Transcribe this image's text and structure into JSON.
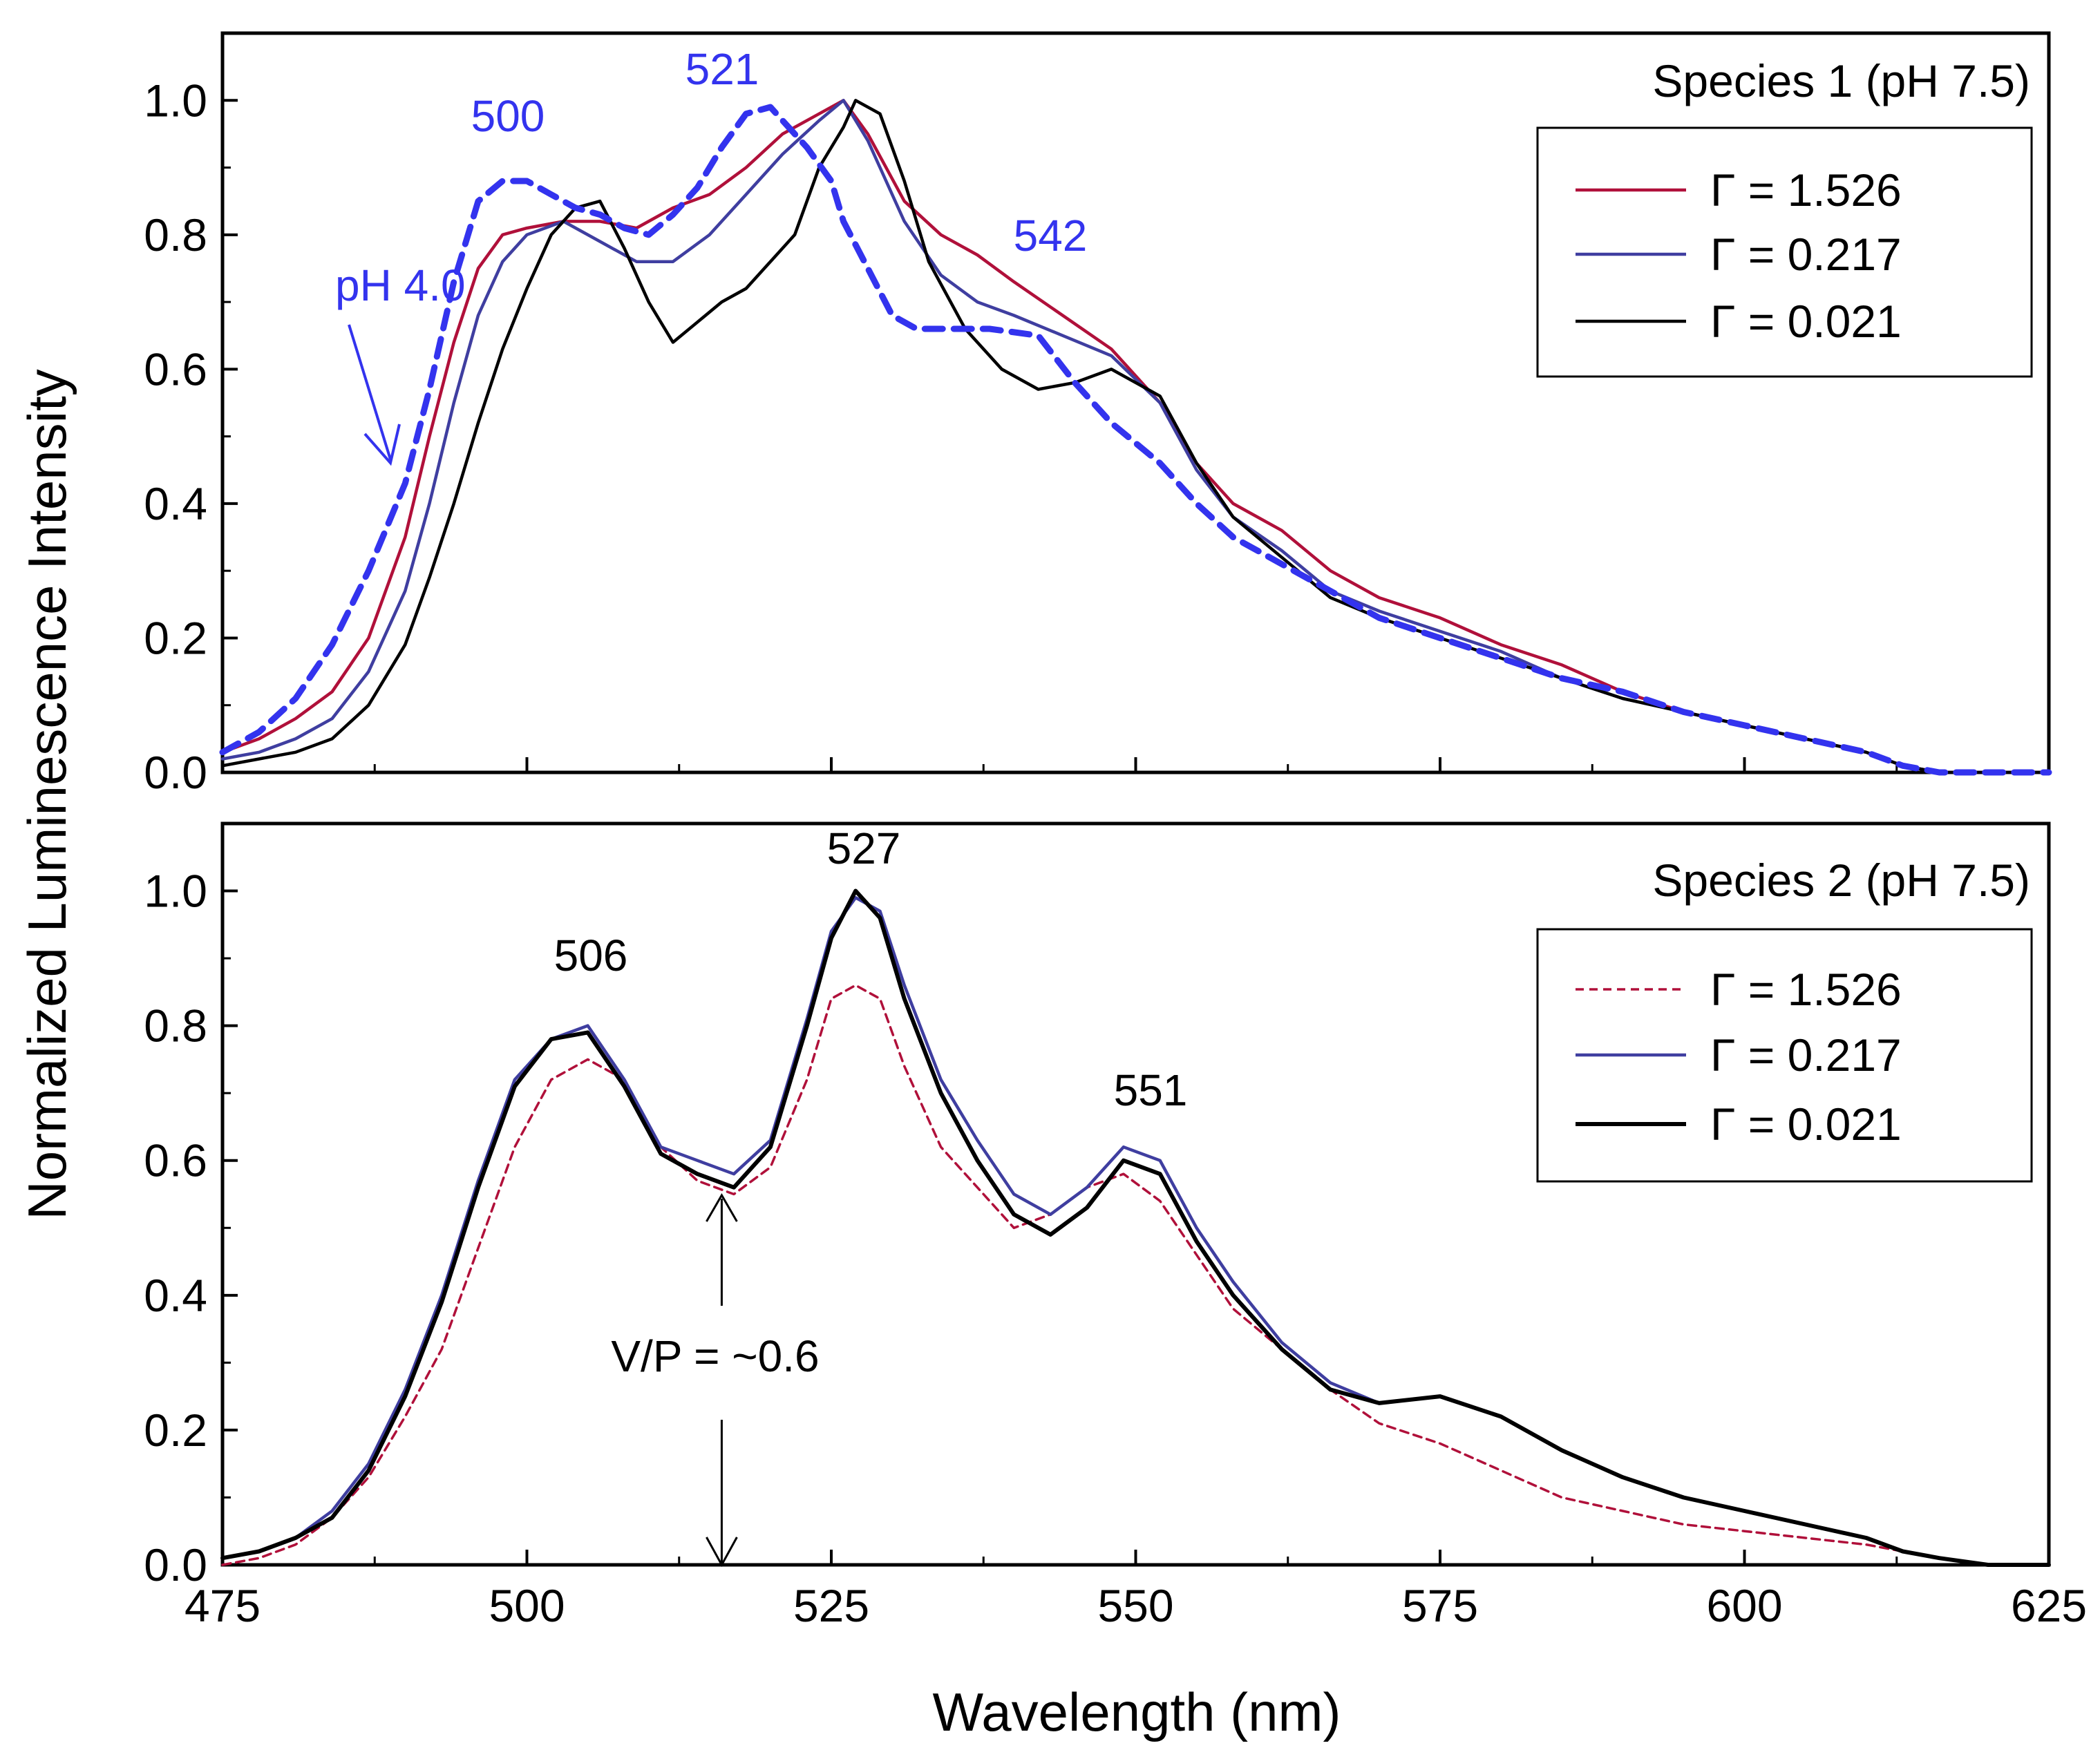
{
  "chart_data": [
    {
      "type": "line",
      "panel": "top",
      "title": "Species 1 (pH 7.5)",
      "xlabel": "Wavelength (nm)",
      "ylabel": "Normalized Luminescence Intensity",
      "xlim": [
        475,
        625
      ],
      "ylim": [
        0,
        1.1
      ],
      "xticks": [
        475,
        500,
        525,
        550,
        575,
        600,
        625
      ],
      "yticks": [
        0.0,
        0.2,
        0.4,
        0.6,
        0.8,
        1.0
      ],
      "ytick_labels": [
        "0.0",
        "0.2",
        "0.4",
        "0.6",
        "0.8",
        "1.0"
      ],
      "legend_position": "top-right",
      "series": [
        {
          "name": "Γ = 1.526",
          "color": "#b0103a",
          "style": "solid",
          "x": [
            475,
            478,
            481,
            484,
            487,
            490,
            492,
            494,
            496,
            498,
            500,
            503,
            506,
            509,
            512,
            515,
            518,
            521,
            524,
            526,
            528,
            531,
            534,
            537,
            540,
            544,
            548,
            552,
            555,
            558,
            562,
            566,
            570,
            575,
            580,
            585,
            590,
            595,
            600,
            605,
            610,
            613,
            616,
            620,
            625
          ],
          "y": [
            0.03,
            0.05,
            0.08,
            0.12,
            0.2,
            0.35,
            0.5,
            0.64,
            0.75,
            0.8,
            0.81,
            0.82,
            0.82,
            0.81,
            0.84,
            0.86,
            0.9,
            0.95,
            0.98,
            1.0,
            0.95,
            0.85,
            0.8,
            0.77,
            0.73,
            0.68,
            0.63,
            0.55,
            0.46,
            0.4,
            0.36,
            0.3,
            0.26,
            0.23,
            0.19,
            0.16,
            0.12,
            0.09,
            0.07,
            0.05,
            0.03,
            0.01,
            0.0,
            0.0,
            0.0
          ]
        },
        {
          "name": "Γ = 0.217",
          "color": "#3f3ea0",
          "style": "solid",
          "x": [
            475,
            478,
            481,
            484,
            487,
            490,
            492,
            494,
            496,
            498,
            500,
            503,
            506,
            509,
            512,
            515,
            518,
            521,
            524,
            526,
            528,
            531,
            534,
            537,
            540,
            544,
            548,
            552,
            555,
            558,
            562,
            566,
            570,
            575,
            580,
            585,
            590,
            595,
            600,
            605,
            610,
            613,
            616,
            620,
            625
          ],
          "y": [
            0.02,
            0.03,
            0.05,
            0.08,
            0.15,
            0.27,
            0.4,
            0.55,
            0.68,
            0.76,
            0.8,
            0.82,
            0.79,
            0.76,
            0.76,
            0.8,
            0.86,
            0.92,
            0.97,
            1.0,
            0.94,
            0.82,
            0.74,
            0.7,
            0.68,
            0.65,
            0.62,
            0.55,
            0.45,
            0.38,
            0.33,
            0.27,
            0.24,
            0.21,
            0.18,
            0.14,
            0.11,
            0.09,
            0.07,
            0.05,
            0.03,
            0.01,
            0.0,
            0.0,
            0.0
          ]
        },
        {
          "name": "Γ = 0.021",
          "color": "#000000",
          "style": "solid",
          "x": [
            475,
            478,
            481,
            484,
            487,
            490,
            492,
            494,
            496,
            498,
            500,
            502,
            504,
            506,
            508,
            510,
            512,
            514,
            516,
            518,
            520,
            522,
            524,
            526,
            527,
            529,
            531,
            533,
            536,
            539,
            542,
            545,
            548,
            552,
            555,
            558,
            562,
            566,
            570,
            575,
            580,
            585,
            590,
            595,
            600,
            605,
            610,
            613,
            616,
            620,
            625
          ],
          "y": [
            0.01,
            0.02,
            0.03,
            0.05,
            0.1,
            0.19,
            0.29,
            0.4,
            0.52,
            0.63,
            0.72,
            0.8,
            0.84,
            0.85,
            0.78,
            0.7,
            0.64,
            0.67,
            0.7,
            0.72,
            0.76,
            0.8,
            0.9,
            0.96,
            1.0,
            0.98,
            0.88,
            0.76,
            0.66,
            0.6,
            0.57,
            0.58,
            0.6,
            0.56,
            0.46,
            0.38,
            0.32,
            0.26,
            0.23,
            0.2,
            0.17,
            0.14,
            0.11,
            0.09,
            0.07,
            0.05,
            0.03,
            0.01,
            0.0,
            0.0,
            0.0
          ]
        },
        {
          "name": "pH 4.0",
          "color": "#3333ee",
          "style": "dashed",
          "x": [
            475,
            478,
            481,
            484,
            487,
            490,
            492,
            494,
            496,
            498,
            500,
            502,
            504,
            506,
            508,
            510,
            512,
            514,
            516,
            518,
            520,
            521,
            523,
            525,
            526,
            528,
            530,
            532,
            535,
            538,
            542,
            545,
            548,
            552,
            555,
            558,
            562,
            566,
            570,
            575,
            580,
            585,
            590,
            595,
            600,
            605,
            610,
            613,
            616,
            620,
            625
          ],
          "y": [
            0.03,
            0.06,
            0.11,
            0.19,
            0.3,
            0.43,
            0.57,
            0.73,
            0.85,
            0.88,
            0.88,
            0.86,
            0.84,
            0.83,
            0.81,
            0.8,
            0.83,
            0.87,
            0.93,
            0.98,
            0.99,
            0.97,
            0.93,
            0.88,
            0.82,
            0.75,
            0.68,
            0.66,
            0.66,
            0.66,
            0.65,
            0.58,
            0.52,
            0.46,
            0.4,
            0.35,
            0.31,
            0.27,
            0.23,
            0.2,
            0.17,
            0.14,
            0.12,
            0.09,
            0.07,
            0.05,
            0.03,
            0.01,
            0.0,
            0.0,
            0.0
          ]
        }
      ],
      "annotations": [
        {
          "text": "pH 4.0",
          "color": "#3333ee"
        },
        {
          "text": "500",
          "color": "#3333ee"
        },
        {
          "text": "521",
          "color": "#3333ee"
        },
        {
          "text": "542",
          "color": "#3333ee"
        }
      ]
    },
    {
      "type": "line",
      "panel": "bottom",
      "title": "Species 2 (pH 7.5)",
      "xlabel": "Wavelength (nm)",
      "ylabel": "Normalized Luminescence Intensity",
      "xlim": [
        475,
        625
      ],
      "ylim": [
        0,
        1.1
      ],
      "xticks": [
        475,
        500,
        525,
        550,
        575,
        600,
        625
      ],
      "xtick_labels": [
        "475",
        "500",
        "525",
        "550",
        "575",
        "600",
        "625"
      ],
      "yticks": [
        0.0,
        0.2,
        0.4,
        0.6,
        0.8,
        1.0
      ],
      "ytick_labels": [
        "0.0",
        "0.2",
        "0.4",
        "0.6",
        "0.8",
        "1.0"
      ],
      "legend_position": "top-right",
      "series": [
        {
          "name": "Γ = 1.526",
          "color": "#b0103a",
          "style": "dashed",
          "x": [
            475,
            478,
            481,
            484,
            487,
            490,
            493,
            496,
            499,
            502,
            505,
            508,
            511,
            514,
            517,
            520,
            523,
            525,
            527,
            529,
            531,
            534,
            537,
            540,
            543,
            546,
            549,
            552,
            555,
            558,
            562,
            566,
            570,
            575,
            580,
            585,
            590,
            595,
            600,
            605,
            610,
            613,
            616,
            620,
            625
          ],
          "y": [
            0.0,
            0.01,
            0.03,
            0.07,
            0.13,
            0.22,
            0.32,
            0.47,
            0.62,
            0.72,
            0.75,
            0.72,
            0.62,
            0.57,
            0.55,
            0.59,
            0.72,
            0.84,
            0.86,
            0.84,
            0.74,
            0.62,
            0.56,
            0.5,
            0.52,
            0.56,
            0.58,
            0.54,
            0.46,
            0.38,
            0.32,
            0.26,
            0.21,
            0.18,
            0.14,
            0.1,
            0.08,
            0.06,
            0.05,
            0.04,
            0.03,
            0.02,
            0.01,
            0.0,
            0.0
          ]
        },
        {
          "name": "Γ = 0.217",
          "color": "#3f3ea0",
          "style": "solid",
          "x": [
            475,
            478,
            481,
            484,
            487,
            490,
            493,
            496,
            499,
            502,
            505,
            508,
            511,
            514,
            517,
            520,
            523,
            525,
            527,
            529,
            531,
            534,
            537,
            540,
            543,
            546,
            549,
            552,
            555,
            558,
            562,
            566,
            570,
            575,
            580,
            585,
            590,
            595,
            600,
            605,
            610,
            613,
            616,
            620,
            625
          ],
          "y": [
            0.01,
            0.02,
            0.04,
            0.08,
            0.15,
            0.26,
            0.4,
            0.57,
            0.72,
            0.78,
            0.8,
            0.72,
            0.62,
            0.6,
            0.58,
            0.63,
            0.81,
            0.94,
            0.99,
            0.97,
            0.86,
            0.72,
            0.63,
            0.55,
            0.52,
            0.56,
            0.62,
            0.6,
            0.5,
            0.42,
            0.33,
            0.27,
            0.24,
            0.25,
            0.22,
            0.17,
            0.13,
            0.1,
            0.08,
            0.06,
            0.04,
            0.02,
            0.01,
            0.0,
            0.0
          ]
        },
        {
          "name": "Γ = 0.021",
          "color": "#000000",
          "style": "solid",
          "x": [
            475,
            478,
            481,
            484,
            487,
            490,
            493,
            496,
            499,
            502,
            505,
            508,
            511,
            514,
            517,
            520,
            523,
            525,
            527,
            529,
            531,
            534,
            537,
            540,
            543,
            546,
            549,
            552,
            555,
            558,
            562,
            566,
            570,
            575,
            580,
            585,
            590,
            595,
            600,
            605,
            610,
            613,
            616,
            620,
            625
          ],
          "y": [
            0.01,
            0.02,
            0.04,
            0.07,
            0.14,
            0.25,
            0.39,
            0.56,
            0.71,
            0.78,
            0.79,
            0.71,
            0.61,
            0.58,
            0.56,
            0.62,
            0.8,
            0.93,
            1.0,
            0.96,
            0.84,
            0.7,
            0.6,
            0.52,
            0.49,
            0.53,
            0.6,
            0.58,
            0.48,
            0.4,
            0.32,
            0.26,
            0.24,
            0.25,
            0.22,
            0.17,
            0.13,
            0.1,
            0.08,
            0.06,
            0.04,
            0.02,
            0.01,
            0.0,
            0.0
          ]
        }
      ],
      "annotations": [
        {
          "text": "506",
          "color": "#000000"
        },
        {
          "text": "527",
          "color": "#000000"
        },
        {
          "text": "551",
          "color": "#000000"
        },
        {
          "text": "V/P = ~0.6",
          "color": "#000000"
        }
      ]
    }
  ]
}
